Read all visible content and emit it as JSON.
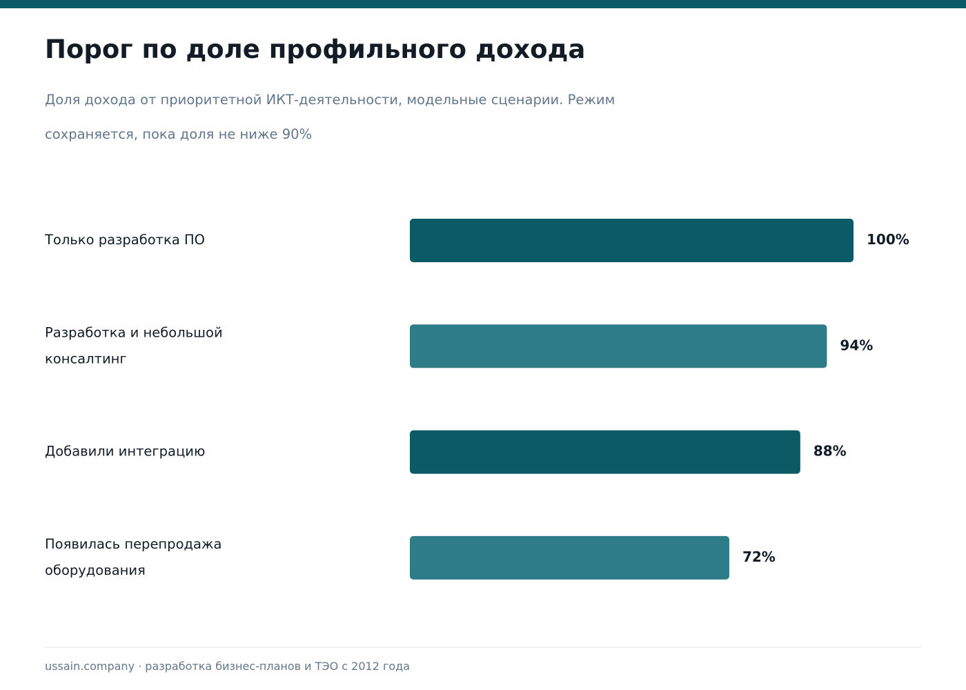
{
  "header": {
    "title": "Порог по доле профильного дохода",
    "subtitle": "Доля дохода от приоритетной ИКТ-деятельности, модельные сценарии. Режим сохраняется, пока доля не ниже 90%"
  },
  "chart_data": {
    "type": "bar",
    "orientation": "horizontal",
    "title": "Порог по доле профильного дохода",
    "subtitle": "Доля дохода от приоритетной ИКТ-деятельности, модельные сценарии. Режим сохраняется, пока доля не ниже 90%",
    "categories": [
      [
        "Только разработка ПО"
      ],
      [
        "Разработка и небольшой",
        "консалтинг"
      ],
      [
        "Добавили интеграцию"
      ],
      [
        "Появилась перепродажа",
        "оборудования"
      ]
    ],
    "values": [
      100,
      94,
      88,
      72
    ],
    "value_labels": [
      "100%",
      "94%",
      "88%",
      "72%"
    ],
    "xlim": [
      0,
      100
    ],
    "grid": false,
    "legend": "none",
    "colors": {
      "primary": "#0c5a66",
      "secondary": "#2f7c89"
    },
    "bar_colors": [
      "#0c5a66",
      "#2f7c89",
      "#0c5a66",
      "#2f7c89"
    ]
  },
  "theme": {
    "accent": "#0c5a66",
    "title_color": "#111c27",
    "muted_color": "#63778b",
    "divider_color": "#e5e8eb"
  },
  "footer": {
    "text": "ussain.company · разработка бизнес-планов и ТЭО с 2012 года"
  }
}
